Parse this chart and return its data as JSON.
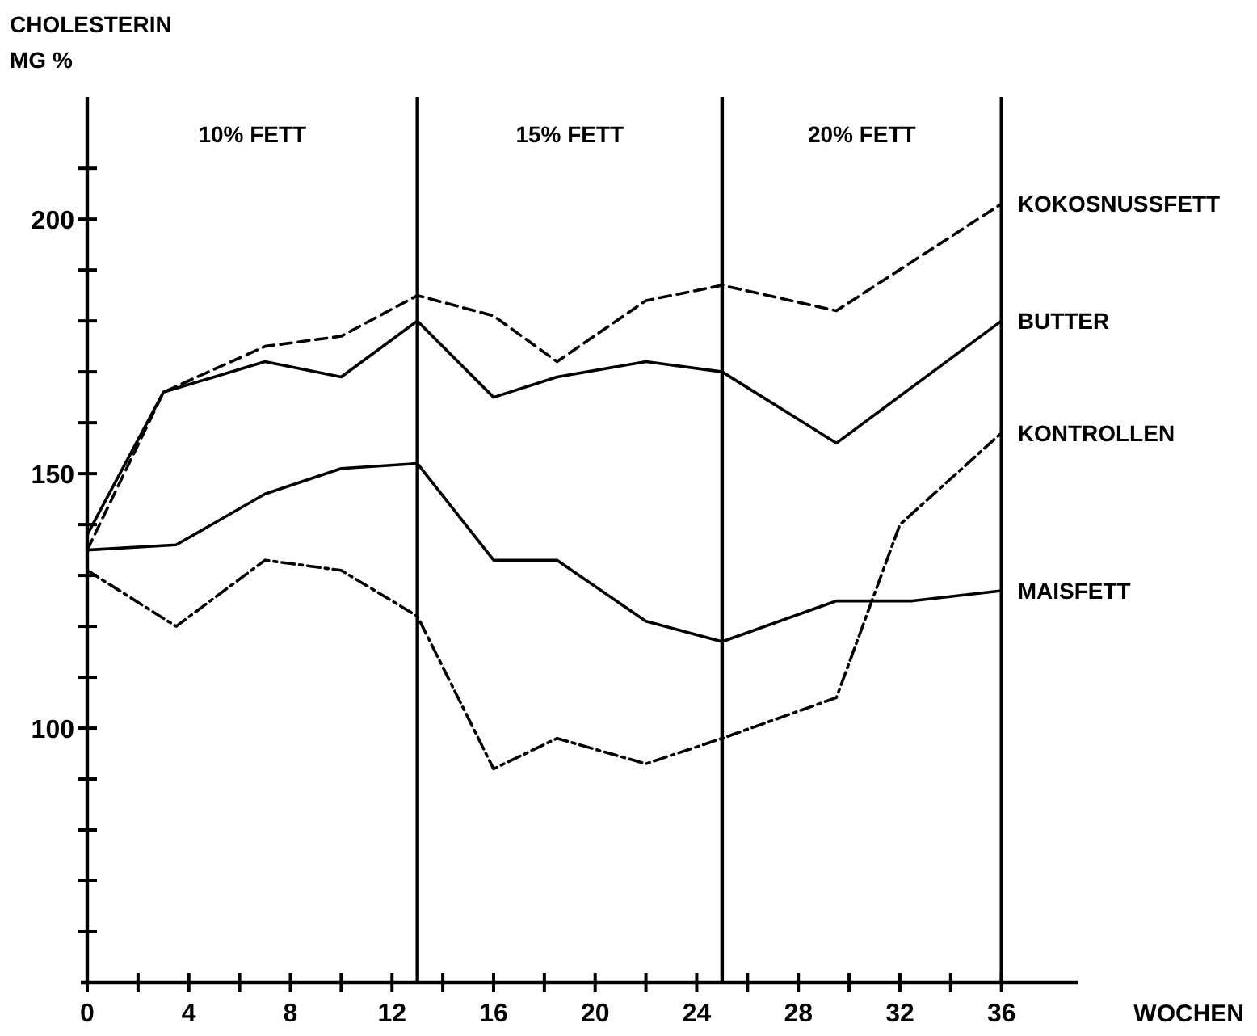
{
  "chart_data": {
    "type": "line",
    "ylabel": "CHOLESTERIN\nMG %",
    "xlabel": "WOCHEN",
    "xlim": [
      0,
      39
    ],
    "xticks": [
      0,
      {
        "value": 2,
        "label": null
      },
      4,
      {
        "value": 6,
        "label": null
      },
      8,
      {
        "value": 10,
        "label": null
      },
      12,
      {
        "value": 14,
        "label": null
      },
      16,
      {
        "value": 18,
        "label": null
      },
      20,
      {
        "value": 22,
        "label": null
      },
      24,
      {
        "value": 26,
        "label": null
      },
      28,
      {
        "value": 30,
        "label": null
      },
      32,
      {
        "value": 34,
        "label": null
      },
      36
    ],
    "ylim": [
      50,
      224
    ],
    "yticks": [
      {
        "value": 60,
        "label": null
      },
      {
        "value": 70,
        "label": null
      },
      {
        "value": 80,
        "label": null
      },
      {
        "value": 90,
        "label": null
      },
      100,
      {
        "value": 110,
        "label": null
      },
      {
        "value": 120,
        "label": null
      },
      {
        "value": 130,
        "label": null
      },
      {
        "value": 140,
        "label": null
      },
      150,
      {
        "value": 160,
        "label": null
      },
      {
        "value": 170,
        "label": null
      },
      {
        "value": 180,
        "label": null
      },
      {
        "value": 190,
        "label": null
      },
      200,
      {
        "value": 210,
        "label": null
      }
    ],
    "grid": false,
    "marker": "none",
    "ref_lines": [
      {
        "axis": "x",
        "value": 13,
        "color": "#000000"
      },
      {
        "axis": "x",
        "value": 25,
        "color": "#000000"
      },
      {
        "axis": "x",
        "value": 36,
        "color": "#000000"
      }
    ],
    "annotations": [
      "10% FETT",
      "15% FETT",
      "20% FETT"
    ],
    "series": [
      {
        "name": "KOKOSNUSSFETT",
        "color": "#000000",
        "line_style": "dashed",
        "x": [
          0,
          3,
          7,
          10,
          13,
          16,
          18.5,
          22,
          25,
          29.5,
          36
        ],
        "values": [
          135,
          166,
          175,
          177,
          185,
          181,
          172,
          184,
          187,
          182,
          203
        ]
      },
      {
        "name": "BUTTER",
        "color": "#000000",
        "line_style": "solid",
        "x": [
          0,
          3,
          7,
          10,
          13,
          16,
          18.5,
          22,
          25,
          29.5,
          36
        ],
        "values": [
          138,
          166,
          172,
          169,
          180,
          165,
          169,
          172,
          170,
          156,
          180
        ]
      },
      {
        "name": "KONTROLLEN",
        "color": "#000000",
        "line_style": "dashdot",
        "x": [
          0,
          3.5,
          7,
          10,
          13,
          16,
          18.5,
          22,
          25,
          29.5,
          32,
          36
        ],
        "values": [
          131,
          120,
          133,
          131,
          122,
          92,
          98,
          93,
          98,
          106,
          140,
          158
        ]
      },
      {
        "name": "MAISFETT",
        "color": "#000000",
        "line_style": "solid",
        "x": [
          0,
          3.5,
          7,
          10,
          13,
          16,
          18.5,
          22,
          25,
          29.5,
          32.5,
          36
        ],
        "values": [
          135,
          136,
          146,
          151,
          152,
          133,
          133,
          121,
          117,
          125,
          125,
          127
        ]
      }
    ]
  }
}
